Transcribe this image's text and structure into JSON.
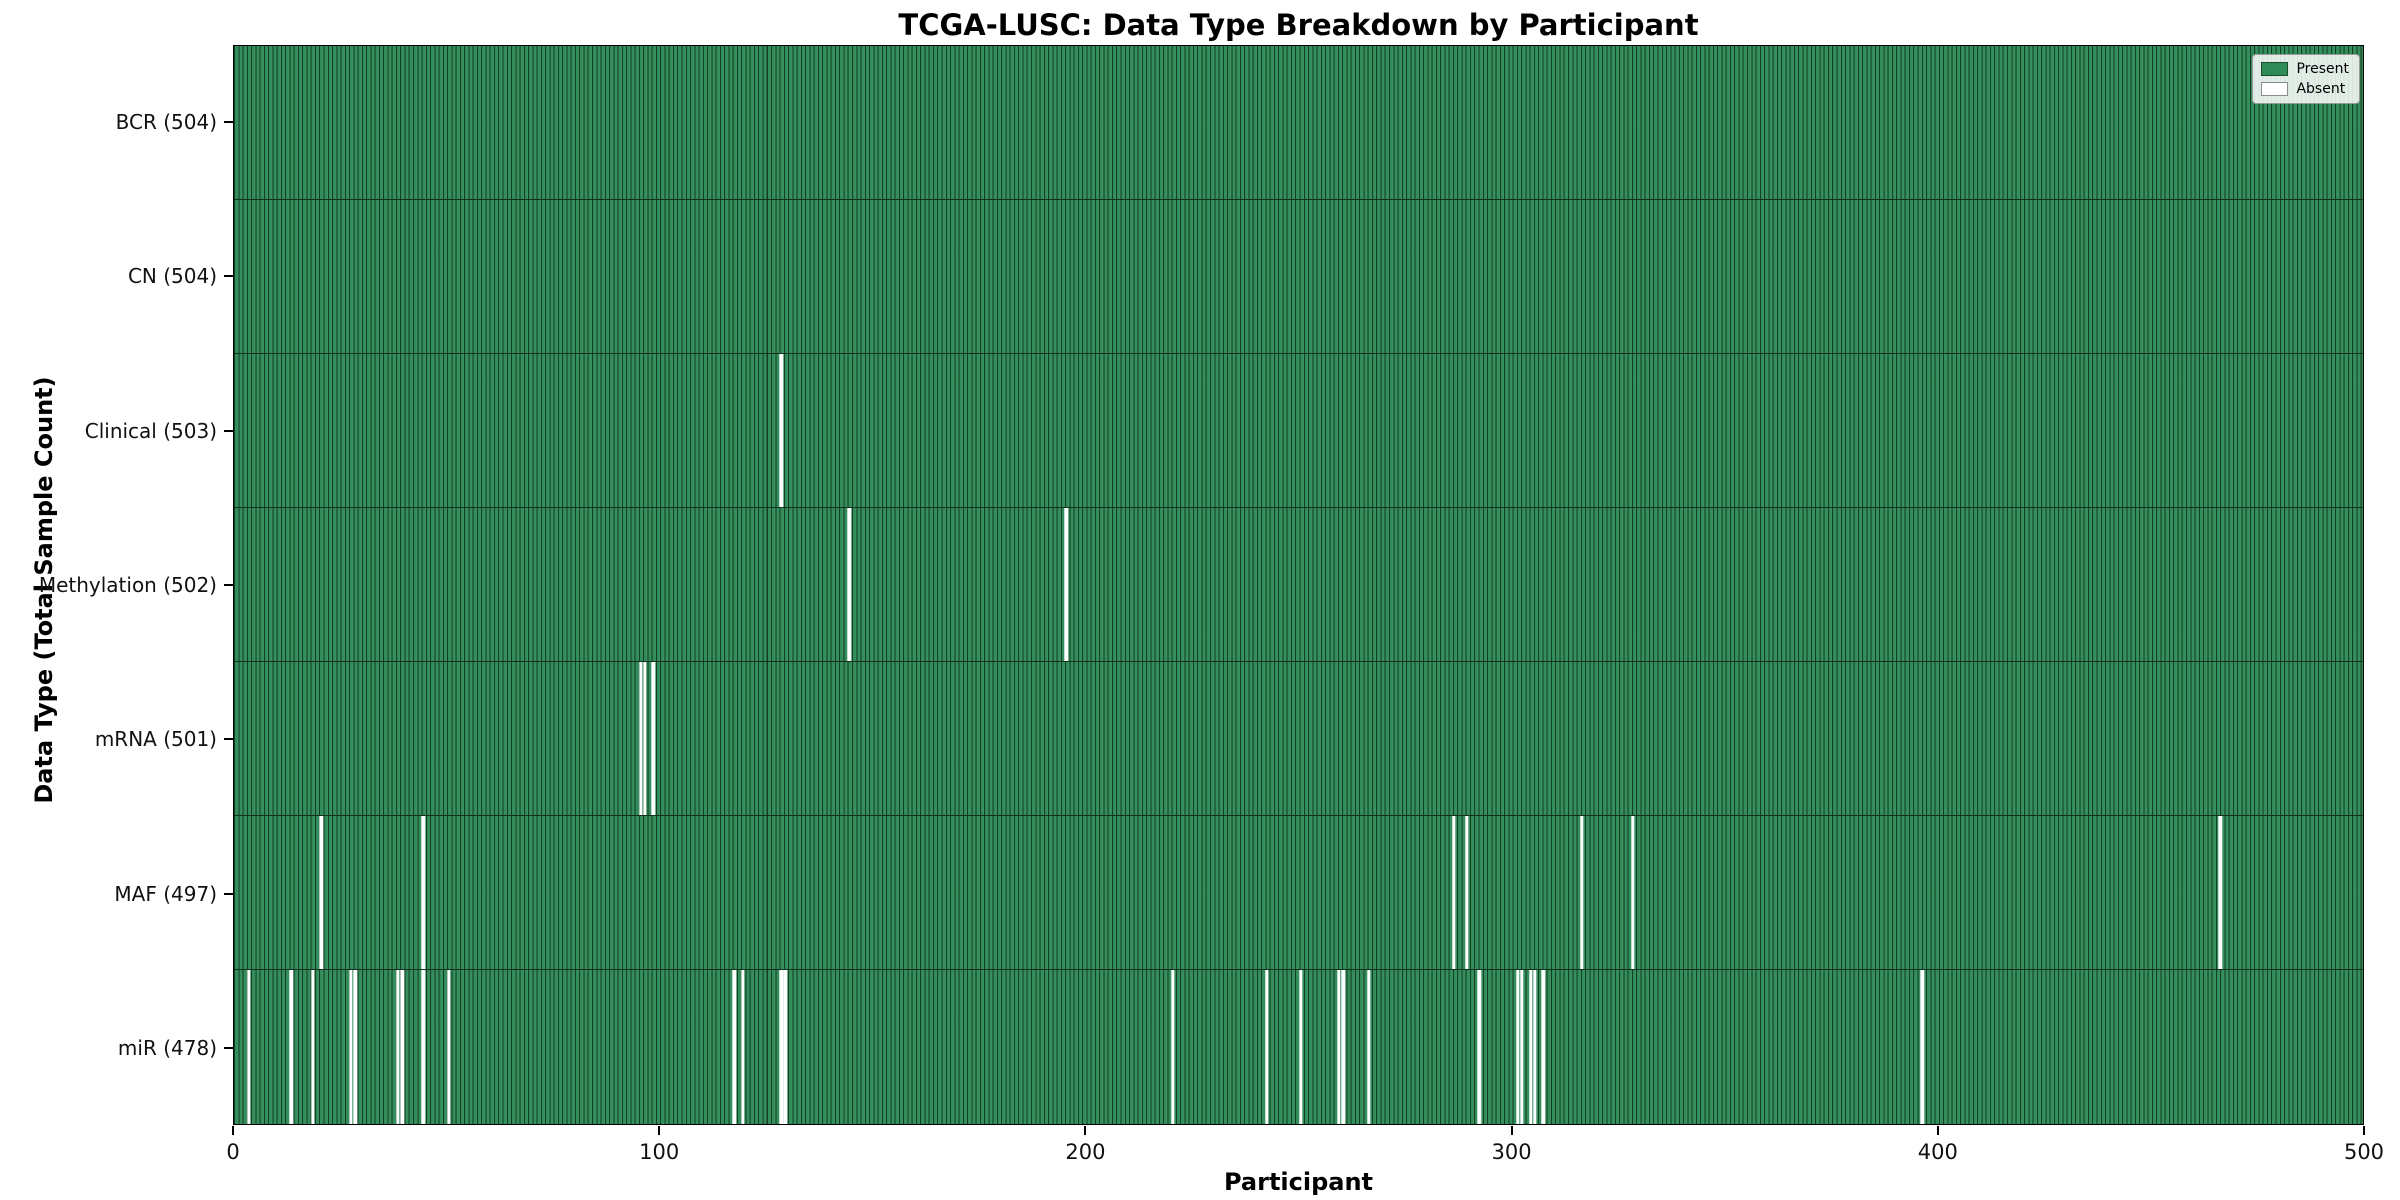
{
  "chart_data": {
    "type": "heatmap",
    "title": "TCGA-LUSC: Data Type Breakdown by Participant",
    "xlabel": "Participant",
    "ylabel": "Data Type (Total Sample Count)",
    "x_axis_range": [
      0,
      500
    ],
    "x_ticks": [
      0,
      100,
      200,
      300,
      400,
      500
    ],
    "n_participants": 504,
    "legend_position": "upper right",
    "grid": false,
    "legend": [
      {
        "label": "Present",
        "color": "#2e8b57"
      },
      {
        "label": "Absent",
        "color": "#ffffff"
      }
    ],
    "colors": {
      "present": "#2e8b57",
      "bar_edge": "#12301e",
      "absent": "#ffffff"
    },
    "rows": [
      {
        "label": "BCR (504)",
        "data_type": "BCR",
        "total": 504,
        "absent_participants": []
      },
      {
        "label": "CN (504)",
        "data_type": "CN",
        "total": 504,
        "absent_participants": []
      },
      {
        "label": "Clinical (503)",
        "data_type": "Clinical",
        "total": 503,
        "absent_participants": [
          129
        ]
      },
      {
        "label": "Methylation (502)",
        "data_type": "Methylation",
        "total": 502,
        "absent_participants": [
          145,
          196
        ]
      },
      {
        "label": "mRNA (501)",
        "data_type": "mRNA",
        "total": 501,
        "absent_participants": [
          96,
          97,
          99
        ]
      },
      {
        "label": "MAF (497)",
        "data_type": "MAF",
        "total": 497,
        "absent_participants": [
          21,
          45,
          287,
          290,
          317,
          329,
          467
        ]
      },
      {
        "label": "miR (478)",
        "data_type": "miR",
        "total": 478,
        "absent_participants": [
          4,
          14,
          19,
          28,
          29,
          39,
          40,
          45,
          51,
          118,
          120,
          129,
          130,
          221,
          243,
          251,
          260,
          261,
          267,
          293,
          302,
          303,
          305,
          306,
          308,
          397
        ]
      }
    ]
  }
}
